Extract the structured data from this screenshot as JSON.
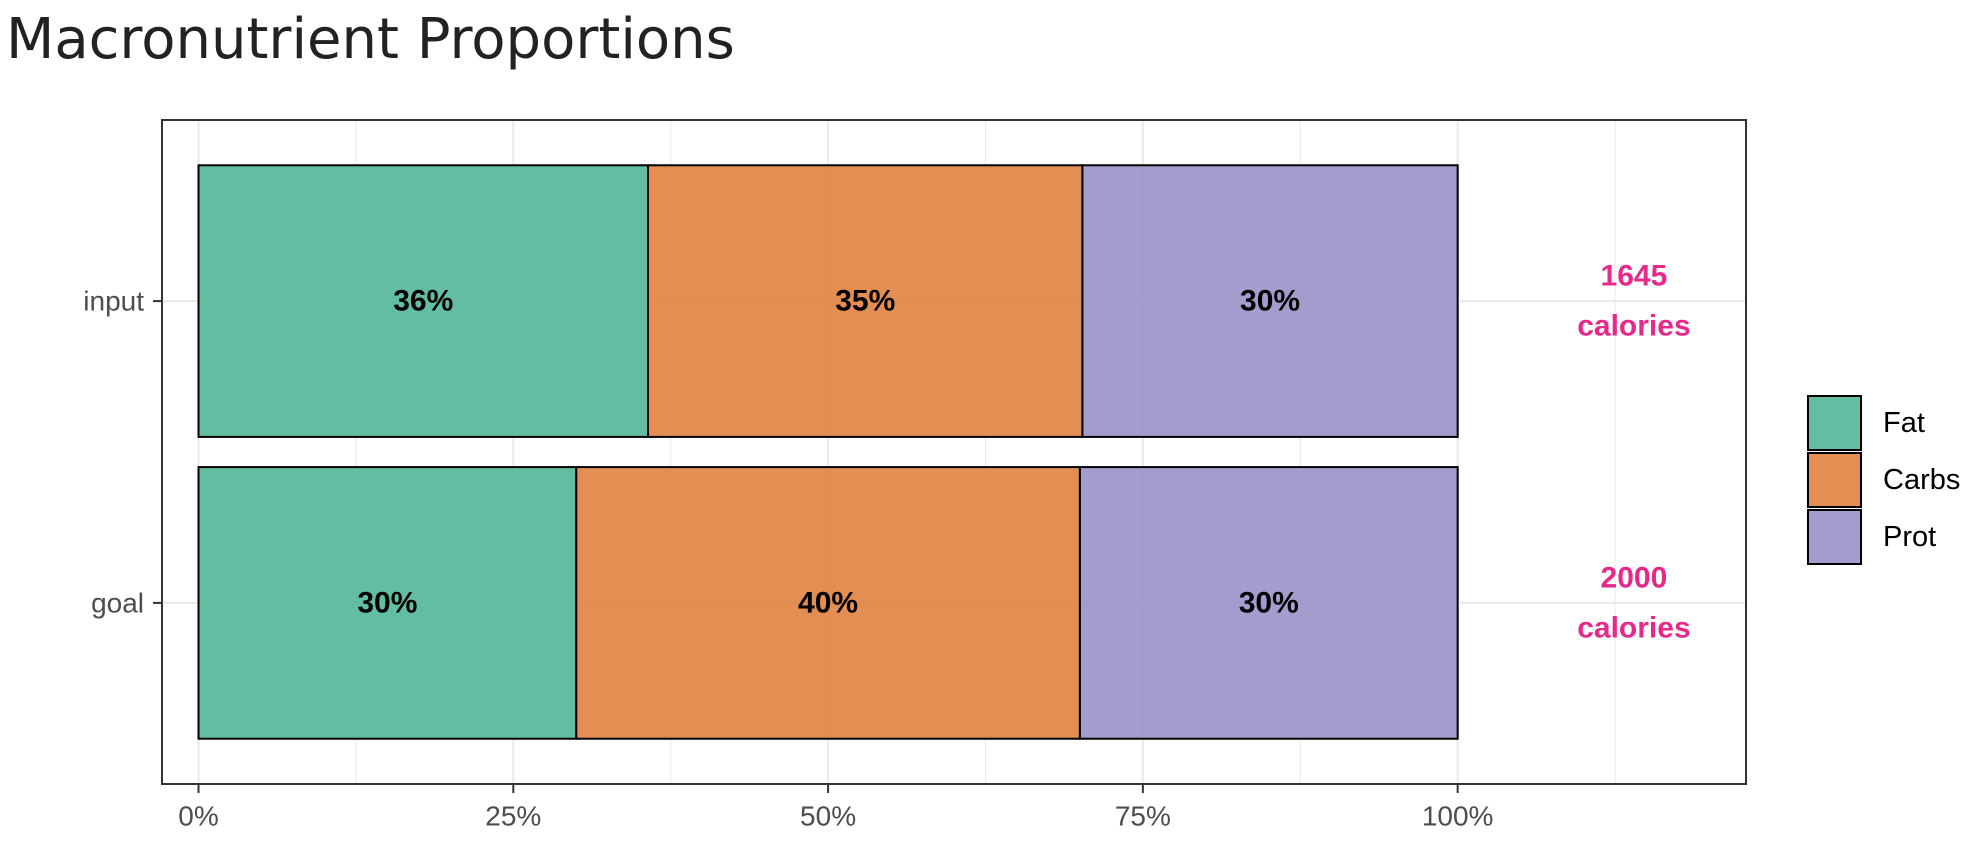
{
  "chart_data": {
    "type": "bar",
    "orientation": "horizontal",
    "stacked": true,
    "title": "Macronutrient Proportions",
    "xlabel": "",
    "ylabel": "",
    "categories": [
      "input",
      "goal"
    ],
    "x_ticks": [
      "0%",
      "25%",
      "50%",
      "75%",
      "100%"
    ],
    "xlim": [
      -0.029,
      1.229
    ],
    "series": [
      {
        "name": "Fat",
        "color": "#5ab99e",
        "values": [
          0.357,
          0.3
        ],
        "labels": [
          "36%",
          "30%"
        ]
      },
      {
        "name": "Carbs",
        "color": "#e2884a",
        "values": [
          0.345,
          0.4
        ],
        "labels": [
          "35%",
          "40%"
        ]
      },
      {
        "name": "Prot",
        "color": "#9e98cb",
        "values": [
          0.298,
          0.3
        ],
        "labels": [
          "30%",
          "30%"
        ]
      }
    ],
    "annotations": [
      {
        "category": "input",
        "lines": [
          "1645",
          "calories"
        ]
      },
      {
        "category": "goal",
        "lines": [
          "2000",
          "calories"
        ]
      }
    ],
    "annotation_color": "#e7298a",
    "grid": true,
    "legend": "right"
  }
}
